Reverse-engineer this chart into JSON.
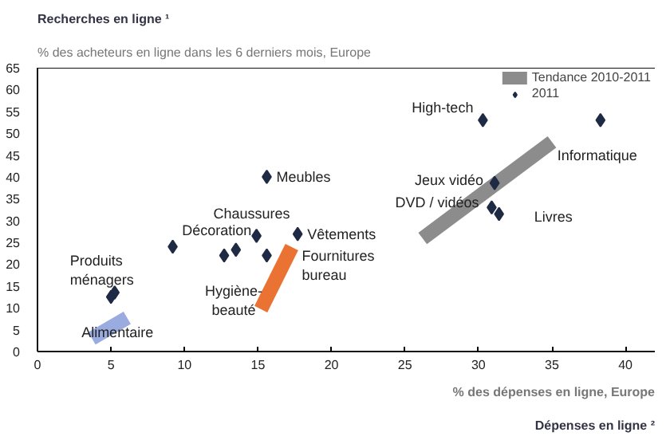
{
  "chart_data": {
    "type": "scatter",
    "ylabel": "Recherches en ligne ¹",
    "subtitle": "% des acheteurs en ligne dans les 6 derniers mois, Europe",
    "xlabel": "Dépenses en ligne ²",
    "xlim": [
      0,
      42
    ],
    "ylim": [
      0,
      65
    ],
    "xticks": [
      0,
      5,
      10,
      15,
      20,
      25,
      30,
      35,
      40
    ],
    "yticks": [
      0,
      5,
      10,
      15,
      20,
      25,
      30,
      35,
      40,
      45,
      50,
      55,
      60,
      65
    ],
    "grid": false,
    "legend": "top right",
    "marker": "diamond",
    "series": [
      {
        "name": "2011",
        "color": "#1f2a44",
        "x": [
          5.25,
          5.0,
          9.2,
          12.7,
          13.5,
          14.9,
          15.6,
          17.7,
          15.6,
          30.3,
          38.3,
          31.1,
          30.9,
          31.4
        ],
        "values": [
          13.5,
          12.5,
          24,
          22,
          23.3,
          26.5,
          22,
          26.9,
          40,
          53,
          53,
          38.6,
          33,
          31.5
        ]
      },
      {
        "type": "line",
        "marker": "none",
        "name": "Tendance 2010-2011",
        "color": "#7f7f7f",
        "x": [
          26.2,
          35.0
        ],
        "values": [
          25.9,
          48
        ]
      },
      {
        "type": "line",
        "marker": "none",
        "color": "#e8641e",
        "x": [
          15.2,
          17.3
        ],
        "values": [
          9.7,
          23.9
        ]
      },
      {
        "type": "line",
        "marker": "none",
        "color": "#8fa3dc",
        "x": [
          3.7,
          6.1
        ],
        "values": [
          3,
          7.7
        ]
      }
    ],
    "annotations": [
      {
        "text": "Produits\nménagers",
        "x": 5.25,
        "y": 13.5
      },
      {
        "text": "Alimentaire",
        "x": 5.0,
        "y": 12.5
      },
      {
        "text": "Hygiène-\nbeauté",
        "x": 12.7,
        "y": 22
      },
      {
        "text": "Décoration",
        "x": 13.5,
        "y": 23.3
      },
      {
        "text": "Chaussures",
        "x": 14.9,
        "y": 26.5
      },
      {
        "text": "Fournitures\nbureau",
        "x": 15.6,
        "y": 22
      },
      {
        "text": "Vêtements",
        "x": 17.7,
        "y": 26.9
      },
      {
        "text": "Meubles",
        "x": 15.6,
        "y": 40
      },
      {
        "text": "High-tech",
        "x": 30.3,
        "y": 53
      },
      {
        "text": "Informatique",
        "x": 38.3,
        "y": 53
      },
      {
        "text": "Jeux vidéo",
        "x": 31.1,
        "y": 38.6
      },
      {
        "text": "DVD / vidéos",
        "x": 30.9,
        "y": 33
      },
      {
        "text": "Livres",
        "x": 31.4,
        "y": 31.5
      },
      "% des dépenses en ligne, Europe"
    ]
  }
}
